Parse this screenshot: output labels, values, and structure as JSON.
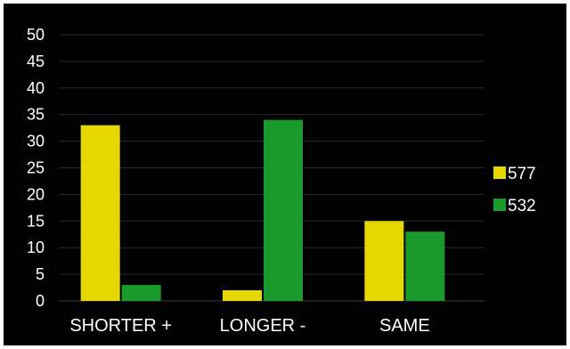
{
  "chart_data": {
    "type": "bar",
    "categories": [
      "SHORTER +",
      "LONGER -",
      "SAME"
    ],
    "series": [
      {
        "name": "577",
        "values": [
          33,
          2,
          15
        ],
        "color": "#e5d800"
      },
      {
        "name": "532",
        "values": [
          3,
          34,
          13
        ],
        "color": "#1a9a2a"
      }
    ],
    "ylim": [
      0,
      50
    ],
    "yticks": [
      0,
      5,
      10,
      15,
      20,
      25,
      30,
      35,
      40,
      45,
      50
    ],
    "grid": true,
    "legend_position": "right",
    "background": "#000000"
  }
}
